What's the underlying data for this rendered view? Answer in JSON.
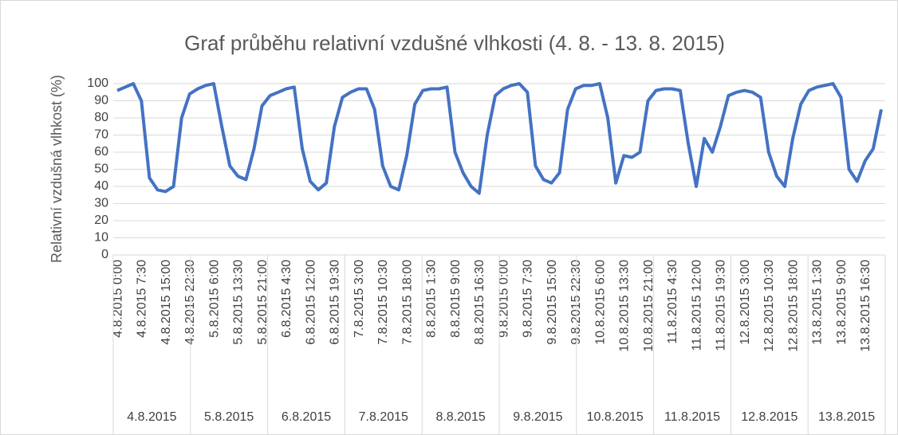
{
  "chart_data": {
    "type": "line",
    "title": "Graf průběhu relativní vzdušné vlhkosti (4. 8. - 13. 8. 2015)",
    "y_label": "Relativní vzdušná vlhkost (%)",
    "categories": [
      "4.8.2015 0:00",
      null,
      null,
      "4.8.2015 7:30",
      null,
      null,
      "4.8.2015 15:00",
      null,
      null,
      "4.8.2015 22:30",
      null,
      null,
      "5.8.2015 6:00",
      null,
      null,
      "5.8.2015 13:30",
      null,
      null,
      "5.8.2015 21:00",
      null,
      null,
      "6.8.2015 4:30",
      null,
      null,
      "6.8.2015 12:00",
      null,
      null,
      "6.8.2015 19:30",
      null,
      null,
      "7.8.2015 3:00",
      null,
      null,
      "7.8.2015 10:30",
      null,
      null,
      "7.8.2015 18:00",
      null,
      null,
      "8.8.2015 1:30",
      null,
      null,
      "8.8.2015 9:00",
      null,
      null,
      "8.8.2015 16:30",
      null,
      null,
      "9.8.2015 0:00",
      null,
      null,
      "9.8.2015 7:30",
      null,
      null,
      "9.8.2015 15:00",
      null,
      null,
      "9.8.2015 22:30",
      null,
      null,
      "10.8.2015 6:00",
      null,
      null,
      "10.8.2015 13:30",
      null,
      null,
      "10.8.2015 21:00",
      null,
      null,
      "11.8.2015 4:30",
      null,
      null,
      "11.8.2015 12:00",
      null,
      null,
      "11.8.2015 19:30",
      null,
      null,
      "12.8.2015 3:00",
      null,
      null,
      "12.8.2015 10:30",
      null,
      null,
      "12.8.2015 18:00",
      null,
      null,
      "13.8.2015 1:30",
      null,
      null,
      "13.8.2015 9:00",
      null,
      null,
      "13.8.2015 16:30",
      null,
      null
    ],
    "groups": [
      "4.8.2015",
      "5.8.2015",
      "6.8.2015",
      "7.8.2015",
      "8.8.2015",
      "9.8.2015",
      "10.8.2015",
      "11.8.2015",
      "12.8.2015",
      "13.8.2015"
    ],
    "series": [
      {
        "name": "Relativní vzdušná vlhkost",
        "color": "#4472c4",
        "values": [
          96,
          98,
          100,
          90,
          45,
          38,
          37,
          40,
          80,
          94,
          97,
          99,
          100,
          75,
          52,
          46,
          44,
          62,
          87,
          93,
          95,
          97,
          98,
          62,
          43,
          38,
          42,
          75,
          92,
          95,
          97,
          97,
          85,
          52,
          40,
          38,
          58,
          88,
          96,
          97,
          97,
          98,
          60,
          48,
          40,
          36,
          70,
          93,
          97,
          99,
          100,
          95,
          52,
          44,
          42,
          48,
          85,
          97,
          99,
          99,
          100,
          80,
          42,
          58,
          57,
          60,
          90,
          96,
          97,
          97,
          96,
          65,
          40,
          68,
          60,
          75,
          93,
          95,
          96,
          95,
          92,
          60,
          46,
          40,
          68,
          88,
          96,
          98,
          99,
          100,
          92,
          50,
          43,
          55,
          62,
          85
        ]
      }
    ],
    "ylim": [
      0,
      100
    ],
    "yticks": [
      0,
      10,
      20,
      30,
      40,
      50,
      60,
      70,
      80,
      90,
      100
    ],
    "grid": true
  }
}
